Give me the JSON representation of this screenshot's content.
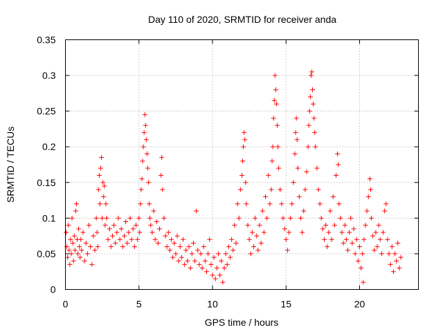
{
  "chart_data": {
    "type": "scatter",
    "title": "Day 110 of 2020, SRMTID for receiver anda",
    "xlabel": "GPS time / hours",
    "ylabel": "SRMTID / TECUs",
    "xlim": [
      0,
      24
    ],
    "ylim": [
      0,
      0.35
    ],
    "x_ticks": [
      0,
      5,
      10,
      15,
      20
    ],
    "x_tick_labels": [
      "0",
      "5",
      "10",
      "15",
      "20"
    ],
    "y_ticks": [
      0,
      0.05,
      0.1,
      0.15,
      0.2,
      0.25,
      0.3,
      0.35
    ],
    "y_tick_labels": [
      "0",
      "0.05",
      "0.1",
      "0.15",
      "0.2",
      "0.25",
      "0.3",
      "0.35"
    ],
    "grid": true,
    "marker": "+",
    "color": "#ff0000",
    "series": [
      {
        "name": "SRMTID",
        "points": [
          [
            0.05,
            0.08
          ],
          [
            0.1,
            0.06
          ],
          [
            0.15,
            0.045
          ],
          [
            0.2,
            0.09
          ],
          [
            0.25,
            0.055
          ],
          [
            0.3,
            0.035
          ],
          [
            0.35,
            0.07
          ],
          [
            0.4,
            0.05
          ],
          [
            0.45,
            0.1
          ],
          [
            0.5,
            0.065
          ],
          [
            0.55,
            0.04
          ],
          [
            0.6,
            0.075
          ],
          [
            0.65,
            0.055
          ],
          [
            0.7,
            0.11
          ],
          [
            0.75,
            0.12
          ],
          [
            0.8,
            0.07
          ],
          [
            0.85,
            0.05
          ],
          [
            0.9,
            0.085
          ],
          [
            0.95,
            0.06
          ],
          [
            1.0,
            0.045
          ],
          [
            1.05,
            0.07
          ],
          [
            1.1,
            0.055
          ],
          [
            1.2,
            0.08
          ],
          [
            1.3,
            0.04
          ],
          [
            1.4,
            0.065
          ],
          [
            1.5,
            0.05
          ],
          [
            1.6,
            0.09
          ],
          [
            1.7,
            0.06
          ],
          [
            1.8,
            0.035
          ],
          [
            1.9,
            0.075
          ],
          [
            2.0,
            0.055
          ],
          [
            2.1,
            0.1
          ],
          [
            2.15,
            0.08
          ],
          [
            2.2,
            0.06
          ],
          [
            2.25,
            0.14
          ],
          [
            2.3,
            0.16
          ],
          [
            2.35,
            0.12
          ],
          [
            2.4,
            0.17
          ],
          [
            2.45,
            0.185
          ],
          [
            2.5,
            0.1
          ],
          [
            2.55,
            0.15
          ],
          [
            2.6,
            0.13
          ],
          [
            2.65,
            0.145
          ],
          [
            2.7,
            0.09
          ],
          [
            2.75,
            0.12
          ],
          [
            2.8,
            0.1
          ],
          [
            2.9,
            0.07
          ],
          [
            3.0,
            0.085
          ],
          [
            3.1,
            0.06
          ],
          [
            3.2,
            0.075
          ],
          [
            3.3,
            0.09
          ],
          [
            3.4,
            0.065
          ],
          [
            3.5,
            0.08
          ],
          [
            3.6,
            0.1
          ],
          [
            3.7,
            0.07
          ],
          [
            3.8,
            0.085
          ],
          [
            3.9,
            0.06
          ],
          [
            4.0,
            0.075
          ],
          [
            4.1,
            0.095
          ],
          [
            4.2,
            0.065
          ],
          [
            4.3,
            0.08
          ],
          [
            4.4,
            0.1
          ],
          [
            4.5,
            0.07
          ],
          [
            4.6,
            0.085
          ],
          [
            4.7,
            0.06
          ],
          [
            4.8,
            0.09
          ],
          [
            4.9,
            0.07
          ],
          [
            5.0,
            0.1
          ],
          [
            5.05,
            0.08
          ],
          [
            5.1,
            0.12
          ],
          [
            5.15,
            0.14
          ],
          [
            5.2,
            0.155
          ],
          [
            5.25,
            0.18
          ],
          [
            5.3,
            0.2
          ],
          [
            5.35,
            0.22
          ],
          [
            5.4,
            0.245
          ],
          [
            5.45,
            0.23
          ],
          [
            5.5,
            0.21
          ],
          [
            5.55,
            0.19
          ],
          [
            5.6,
            0.17
          ],
          [
            5.65,
            0.15
          ],
          [
            5.7,
            0.12
          ],
          [
            5.75,
            0.1
          ],
          [
            5.8,
            0.09
          ],
          [
            5.9,
            0.08
          ],
          [
            6.0,
            0.11
          ],
          [
            6.1,
            0.07
          ],
          [
            6.2,
            0.095
          ],
          [
            6.3,
            0.065
          ],
          [
            6.4,
            0.085
          ],
          [
            6.5,
            0.16
          ],
          [
            6.55,
            0.185
          ],
          [
            6.6,
            0.14
          ],
          [
            6.7,
            0.1
          ],
          [
            6.8,
            0.075
          ],
          [
            6.9,
            0.06
          ],
          [
            7.0,
            0.08
          ],
          [
            7.1,
            0.055
          ],
          [
            7.2,
            0.07
          ],
          [
            7.3,
            0.045
          ],
          [
            7.4,
            0.065
          ],
          [
            7.5,
            0.05
          ],
          [
            7.6,
            0.075
          ],
          [
            7.7,
            0.04
          ],
          [
            7.8,
            0.06
          ],
          [
            7.9,
            0.045
          ],
          [
            8.0,
            0.07
          ],
          [
            8.1,
            0.035
          ],
          [
            8.2,
            0.055
          ],
          [
            8.3,
            0.04
          ],
          [
            8.4,
            0.06
          ],
          [
            8.5,
            0.03
          ],
          [
            8.6,
            0.05
          ],
          [
            8.7,
            0.065
          ],
          [
            8.8,
            0.04
          ],
          [
            8.9,
            0.11
          ],
          [
            9.0,
            0.055
          ],
          [
            9.1,
            0.035
          ],
          [
            9.2,
            0.05
          ],
          [
            9.3,
            0.03
          ],
          [
            9.4,
            0.06
          ],
          [
            9.5,
            0.04
          ],
          [
            9.6,
            0.025
          ],
          [
            9.7,
            0.05
          ],
          [
            9.8,
            0.07
          ],
          [
            9.9,
            0.035
          ],
          [
            10.0,
            0.02
          ],
          [
            10.1,
            0.045
          ],
          [
            10.2,
            0.015
          ],
          [
            10.3,
            0.03
          ],
          [
            10.4,
            0.05
          ],
          [
            10.5,
            0.02
          ],
          [
            10.6,
            0.04
          ],
          [
            10.7,
            0.01
          ],
          [
            10.8,
            0.03
          ],
          [
            10.9,
            0.05
          ],
          [
            11.0,
            0.035
          ],
          [
            11.1,
            0.06
          ],
          [
            11.2,
            0.045
          ],
          [
            11.3,
            0.07
          ],
          [
            11.4,
            0.055
          ],
          [
            11.5,
            0.09
          ],
          [
            11.6,
            0.065
          ],
          [
            11.7,
            0.12
          ],
          [
            11.8,
            0.1
          ],
          [
            11.9,
            0.14
          ],
          [
            12.0,
            0.16
          ],
          [
            12.05,
            0.18
          ],
          [
            12.1,
            0.2
          ],
          [
            12.15,
            0.22
          ],
          [
            12.2,
            0.21
          ],
          [
            12.25,
            0.15
          ],
          [
            12.3,
            0.12
          ],
          [
            12.4,
            0.09
          ],
          [
            12.5,
            0.07
          ],
          [
            12.6,
            0.05
          ],
          [
            12.7,
            0.08
          ],
          [
            12.8,
            0.06
          ],
          [
            12.9,
            0.1
          ],
          [
            13.0,
            0.075
          ],
          [
            13.1,
            0.055
          ],
          [
            13.2,
            0.09
          ],
          [
            13.3,
            0.065
          ],
          [
            13.4,
            0.11
          ],
          [
            13.5,
            0.08
          ],
          [
            13.6,
            0.13
          ],
          [
            13.7,
            0.1
          ],
          [
            13.8,
            0.16
          ],
          [
            13.9,
            0.12
          ],
          [
            14.0,
            0.14
          ],
          [
            14.05,
            0.18
          ],
          [
            14.1,
            0.2
          ],
          [
            14.15,
            0.24
          ],
          [
            14.2,
            0.265
          ],
          [
            14.25,
            0.3
          ],
          [
            14.3,
            0.28
          ],
          [
            14.35,
            0.26
          ],
          [
            14.4,
            0.23
          ],
          [
            14.45,
            0.2
          ],
          [
            14.5,
            0.17
          ],
          [
            14.6,
            0.14
          ],
          [
            14.7,
            0.12
          ],
          [
            14.8,
            0.1
          ],
          [
            14.9,
            0.085
          ],
          [
            15.0,
            0.07
          ],
          [
            15.1,
            0.055
          ],
          [
            15.2,
            0.08
          ],
          [
            15.3,
            0.1
          ],
          [
            15.4,
            0.12
          ],
          [
            15.5,
            0.15
          ],
          [
            15.6,
            0.19
          ],
          [
            15.65,
            0.22
          ],
          [
            15.7,
            0.24
          ],
          [
            15.75,
            0.21
          ],
          [
            15.8,
            0.17
          ],
          [
            15.9,
            0.13
          ],
          [
            16.0,
            0.1
          ],
          [
            16.1,
            0.08
          ],
          [
            16.2,
            0.11
          ],
          [
            16.3,
            0.14
          ],
          [
            16.4,
            0.165
          ],
          [
            16.5,
            0.2
          ],
          [
            16.55,
            0.23
          ],
          [
            16.6,
            0.25
          ],
          [
            16.65,
            0.27
          ],
          [
            16.7,
            0.3
          ],
          [
            16.75,
            0.305
          ],
          [
            16.8,
            0.28
          ],
          [
            16.85,
            0.26
          ],
          [
            16.9,
            0.24
          ],
          [
            16.95,
            0.22
          ],
          [
            17.0,
            0.2
          ],
          [
            17.1,
            0.17
          ],
          [
            17.2,
            0.14
          ],
          [
            17.3,
            0.12
          ],
          [
            17.4,
            0.1
          ],
          [
            17.5,
            0.085
          ],
          [
            17.6,
            0.07
          ],
          [
            17.7,
            0.09
          ],
          [
            17.8,
            0.06
          ],
          [
            17.9,
            0.08
          ],
          [
            18.0,
            0.11
          ],
          [
            18.1,
            0.07
          ],
          [
            18.2,
            0.13
          ],
          [
            18.3,
            0.09
          ],
          [
            18.4,
            0.16
          ],
          [
            18.5,
            0.19
          ],
          [
            18.55,
            0.175
          ],
          [
            18.6,
            0.12
          ],
          [
            18.7,
            0.1
          ],
          [
            18.8,
            0.08
          ],
          [
            18.9,
            0.065
          ],
          [
            19.0,
            0.09
          ],
          [
            19.1,
            0.07
          ],
          [
            19.2,
            0.055
          ],
          [
            19.3,
            0.08
          ],
          [
            19.4,
            0.1
          ],
          [
            19.5,
            0.065
          ],
          [
            19.6,
            0.085
          ],
          [
            19.7,
            0.05
          ],
          [
            19.8,
            0.07
          ],
          [
            19.9,
            0.04
          ],
          [
            20.0,
            0.06
          ],
          [
            20.1,
            0.03
          ],
          [
            20.2,
            0.05
          ],
          [
            20.25,
            0.01
          ],
          [
            20.3,
            0.07
          ],
          [
            20.4,
            0.09
          ],
          [
            20.5,
            0.11
          ],
          [
            20.6,
            0.13
          ],
          [
            20.7,
            0.155
          ],
          [
            20.75,
            0.14
          ],
          [
            20.8,
            0.1
          ],
          [
            20.9,
            0.075
          ],
          [
            21.0,
            0.055
          ],
          [
            21.1,
            0.08
          ],
          [
            21.2,
            0.06
          ],
          [
            21.3,
            0.09
          ],
          [
            21.4,
            0.07
          ],
          [
            21.5,
            0.05
          ],
          [
            21.6,
            0.08
          ],
          [
            21.7,
            0.11
          ],
          [
            21.8,
            0.12
          ],
          [
            21.9,
            0.07
          ],
          [
            22.0,
            0.05
          ],
          [
            22.1,
            0.035
          ],
          [
            22.2,
            0.06
          ],
          [
            22.3,
            0.025
          ],
          [
            22.4,
            0.05
          ],
          [
            22.5,
            0.04
          ],
          [
            22.6,
            0.065
          ],
          [
            22.7,
            0.03
          ],
          [
            22.8,
            0.045
          ]
        ]
      }
    ]
  }
}
